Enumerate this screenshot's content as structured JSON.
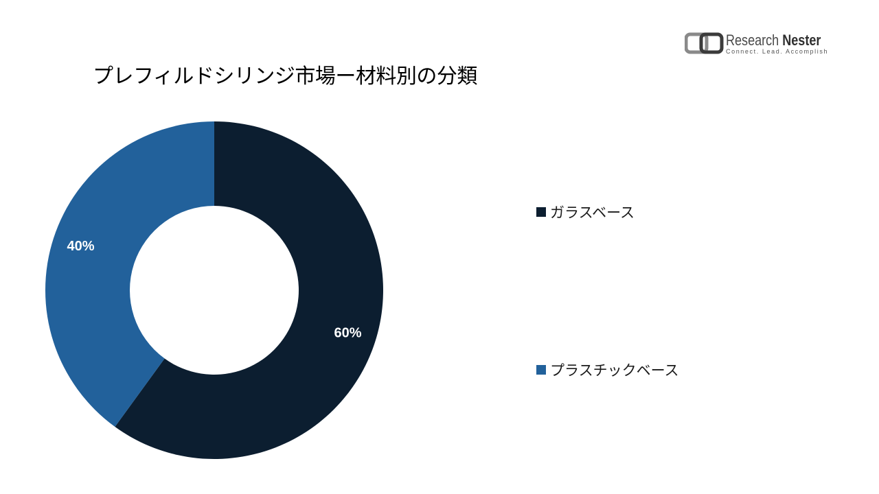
{
  "title": "プレフィルドシリンジ市場ー材料別の分類",
  "logo": {
    "name_regular": "Research ",
    "name_bold": "Nester",
    "tagline": "Connect. Lead. Accomplish"
  },
  "chart_data": {
    "type": "pie",
    "variant": "donut",
    "categories": [
      "ガラスベース",
      "プラスチックベース"
    ],
    "values": [
      60,
      40
    ],
    "data_labels": [
      "60%",
      "40%"
    ],
    "colors": [
      "#0c1e30",
      "#22619b"
    ],
    "legend_position": "right"
  }
}
